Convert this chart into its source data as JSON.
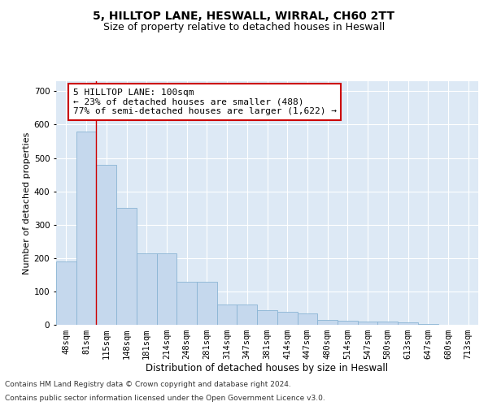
{
  "title1": "5, HILLTOP LANE, HESWALL, WIRRAL, CH60 2TT",
  "title2": "Size of property relative to detached houses in Heswall",
  "xlabel": "Distribution of detached houses by size in Heswall",
  "ylabel": "Number of detached properties",
  "categories": [
    "48sqm",
    "81sqm",
    "115sqm",
    "148sqm",
    "181sqm",
    "214sqm",
    "248sqm",
    "281sqm",
    "314sqm",
    "347sqm",
    "381sqm",
    "414sqm",
    "447sqm",
    "480sqm",
    "514sqm",
    "547sqm",
    "580sqm",
    "613sqm",
    "647sqm",
    "680sqm",
    "713sqm"
  ],
  "values": [
    190,
    580,
    480,
    350,
    215,
    215,
    130,
    130,
    62,
    62,
    43,
    38,
    35,
    15,
    12,
    10,
    10,
    7,
    2,
    1,
    1
  ],
  "bar_color": "#c5d8ed",
  "bar_edge_color": "#8ab4d4",
  "vline_x_index": 1.5,
  "vline_color": "#cc0000",
  "annotation_text": "5 HILLTOP LANE: 100sqm\n← 23% of detached houses are smaller (488)\n77% of semi-detached houses are larger (1,622) →",
  "annotation_box_color": "#ffffff",
  "annotation_box_edge": "#cc0000",
  "ylim": [
    0,
    730
  ],
  "yticks": [
    0,
    100,
    200,
    300,
    400,
    500,
    600,
    700
  ],
  "background_color": "#dde9f5",
  "footer1": "Contains HM Land Registry data © Crown copyright and database right 2024.",
  "footer2": "Contains public sector information licensed under the Open Government Licence v3.0.",
  "title1_fontsize": 10,
  "title2_fontsize": 9,
  "xlabel_fontsize": 8.5,
  "ylabel_fontsize": 8,
  "tick_fontsize": 7.5,
  "annotation_fontsize": 8,
  "footer_fontsize": 6.5
}
